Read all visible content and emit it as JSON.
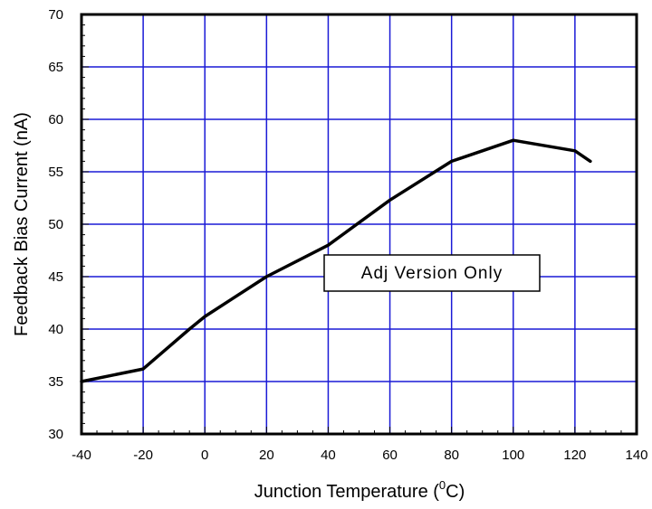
{
  "chart_data": {
    "type": "line",
    "title": "",
    "xlabel": "Junction Temperature (°C)",
    "xlabel_parts": {
      "before": "Junction Temperature (",
      "superscript": "0",
      "after": "C)"
    },
    "ylabel": "Feedback Bias Current (nA)",
    "xlim": [
      -40,
      140
    ],
    "ylim": [
      30,
      70
    ],
    "x_ticks": [
      -40,
      -20,
      0,
      20,
      40,
      60,
      80,
      100,
      120,
      140
    ],
    "y_ticks": [
      30,
      35,
      40,
      45,
      50,
      55,
      60,
      65,
      70
    ],
    "grid": true,
    "annotation": "Adj Version Only",
    "series": [
      {
        "x": [
          -40,
          -20,
          -5,
          0,
          20,
          40,
          60,
          80,
          100,
          120,
          125
        ],
        "y": [
          35.0,
          36.2,
          40.0,
          41.2,
          45.0,
          48.0,
          52.3,
          56.0,
          58.0,
          57.0,
          56.0
        ]
      }
    ]
  },
  "colors": {
    "grid": "#1a1ad6",
    "line": "#000000",
    "frame": "#000000",
    "background": "#ffffff"
  }
}
